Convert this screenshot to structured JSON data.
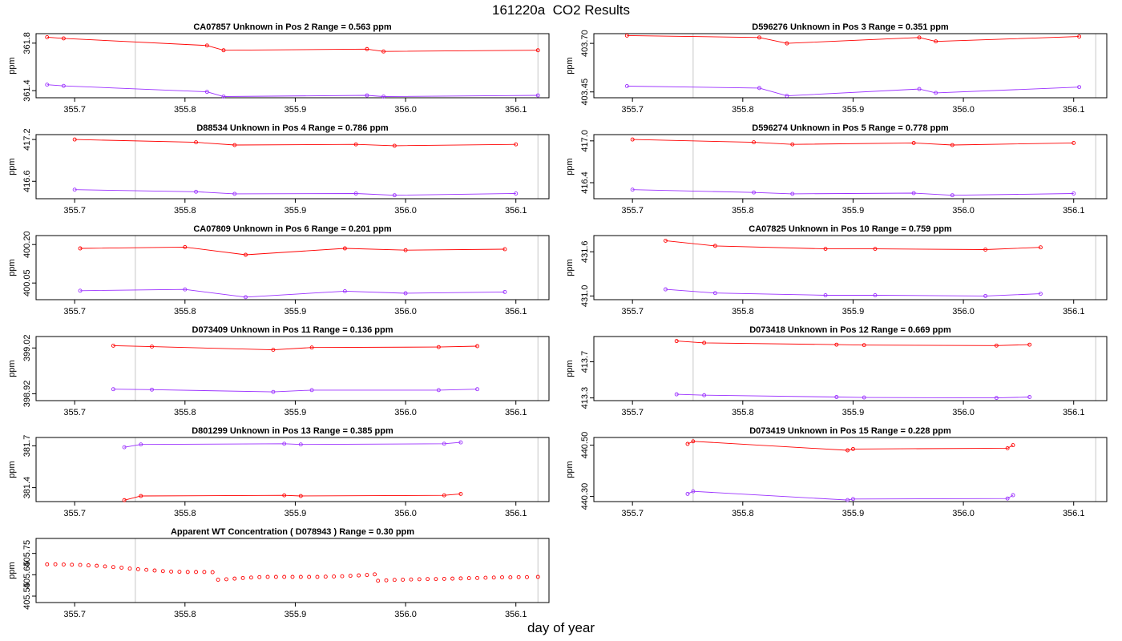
{
  "page_title": "161220a  CO2 Results",
  "x_axis_label": "day of year",
  "y_axis_label": "ppm",
  "colors": {
    "series_a": "#ff0000",
    "series_b": "#9b30ff",
    "frame": "#000000",
    "vline": "#c8c8c8"
  },
  "chart_data": [
    {
      "type": "line",
      "title": "CA07857    Unknown in Pos 2         Range =  0.563 ppm",
      "xlabel": "",
      "ylabel": "ppm",
      "xlim": [
        355.665,
        356.13
      ],
      "ylim": [
        361.34,
        361.88
      ],
      "xticks": [
        "355.7",
        "355.8",
        "355.9",
        "356.0",
        "356.1"
      ],
      "yticks": [
        "361.4",
        "361.8"
      ],
      "vlines": [
        355.755,
        356.12
      ],
      "series": [
        {
          "name": "red",
          "color": "#ff0000",
          "x": [
            355.675,
            355.69,
            355.82,
            355.835,
            355.965,
            355.98,
            356.12
          ],
          "y": [
            361.85,
            361.84,
            361.78,
            361.74,
            361.75,
            361.73,
            361.74
          ]
        },
        {
          "name": "purple",
          "color": "#9b30ff",
          "x": [
            355.675,
            355.69,
            355.82,
            355.835,
            355.965,
            355.98,
            356.12
          ],
          "y": [
            361.45,
            361.44,
            361.39,
            361.35,
            361.36,
            361.35,
            361.36
          ]
        }
      ]
    },
    {
      "type": "line",
      "title": "D596276    Unknown in Pos 3         Range =  0.351 ppm",
      "xlabel": "",
      "ylabel": "ppm",
      "xlim": [
        355.665,
        356.13
      ],
      "ylim": [
        403.42,
        403.75
      ],
      "xticks": [
        "355.7",
        "355.8",
        "355.9",
        "356.0",
        "356.1"
      ],
      "yticks": [
        "403.45",
        "403.70"
      ],
      "vlines": [
        355.755,
        356.12
      ],
      "series": [
        {
          "name": "red",
          "color": "#ff0000",
          "x": [
            355.695,
            355.815,
            355.84,
            355.96,
            355.975,
            356.105
          ],
          "y": [
            403.74,
            403.73,
            403.7,
            403.73,
            403.71,
            403.735
          ]
        },
        {
          "name": "purple",
          "color": "#9b30ff",
          "x": [
            355.695,
            355.815,
            355.84,
            355.96,
            355.975,
            356.105
          ],
          "y": [
            403.48,
            403.47,
            403.43,
            403.465,
            403.445,
            403.475
          ]
        }
      ]
    },
    {
      "type": "line",
      "title": "D88534    Unknown in Pos 4         Range =  0.786 ppm",
      "xlabel": "",
      "ylabel": "ppm",
      "xlim": [
        355.665,
        356.13
      ],
      "ylim": [
        416.35,
        417.27
      ],
      "xticks": [
        "355.7",
        "355.8",
        "355.9",
        "356.0",
        "356.1"
      ],
      "yticks": [
        "416.6",
        "417.2"
      ],
      "vlines": [
        355.755,
        356.12
      ],
      "series": [
        {
          "name": "red",
          "color": "#ff0000",
          "x": [
            355.7,
            355.81,
            355.845,
            355.955,
            355.99,
            356.1
          ],
          "y": [
            417.2,
            417.16,
            417.12,
            417.13,
            417.11,
            417.13
          ]
        },
        {
          "name": "purple",
          "color": "#9b30ff",
          "x": [
            355.7,
            355.81,
            355.845,
            355.955,
            355.99,
            356.1
          ],
          "y": [
            416.48,
            416.45,
            416.42,
            416.425,
            416.4,
            416.425
          ]
        }
      ]
    },
    {
      "type": "line",
      "title": "D596274    Unknown in Pos 5         Range =  0.778 ppm",
      "xlabel": "",
      "ylabel": "ppm",
      "xlim": [
        355.665,
        356.13
      ],
      "ylim": [
        416.17,
        417.09
      ],
      "xticks": [
        "355.7",
        "355.8",
        "355.9",
        "356.0",
        "356.1"
      ],
      "yticks": [
        "416.4",
        "417.0"
      ],
      "vlines": [
        355.755,
        356.12
      ],
      "series": [
        {
          "name": "red",
          "color": "#ff0000",
          "x": [
            355.7,
            355.81,
            355.845,
            355.955,
            355.99,
            356.1
          ],
          "y": [
            417.02,
            416.98,
            416.95,
            416.97,
            416.94,
            416.97
          ]
        },
        {
          "name": "purple",
          "color": "#9b30ff",
          "x": [
            355.7,
            355.81,
            355.845,
            355.955,
            355.99,
            356.1
          ],
          "y": [
            416.3,
            416.26,
            416.24,
            416.25,
            416.22,
            416.245
          ]
        }
      ]
    },
    {
      "type": "line",
      "title": "CA07809    Unknown in Pos 6         Range =  0.201 ppm",
      "xlabel": "",
      "ylabel": "ppm",
      "xlim": [
        355.665,
        356.13
      ],
      "ylim": [
        399.985,
        400.235
      ],
      "xticks": [
        "355.7",
        "355.8",
        "355.9",
        "356.0",
        "356.1"
      ],
      "yticks": [
        "400.05",
        "400.20"
      ],
      "vlines": [
        355.755,
        356.12
      ],
      "series": [
        {
          "name": "red",
          "color": "#ff0000",
          "x": [
            355.705,
            355.8,
            355.855,
            355.945,
            356.0,
            356.09
          ],
          "y": [
            400.185,
            400.19,
            400.16,
            400.185,
            400.178,
            400.182
          ]
        },
        {
          "name": "purple",
          "color": "#9b30ff",
          "x": [
            355.705,
            355.8,
            355.855,
            355.945,
            356.0,
            356.09
          ],
          "y": [
            400.02,
            400.025,
            399.995,
            400.018,
            400.01,
            400.015
          ]
        }
      ]
    },
    {
      "type": "line",
      "title": "CA07825    Unknown in Pos 10         Range =  0.759 ppm",
      "xlabel": "",
      "ylabel": "ppm",
      "xlim": [
        355.665,
        356.13
      ],
      "ylim": [
        430.95,
        431.82
      ],
      "xticks": [
        "355.7",
        "355.8",
        "355.9",
        "356.0",
        "356.1"
      ],
      "yticks": [
        "431.0",
        "431.6"
      ],
      "vlines": [
        355.755,
        356.12
      ],
      "series": [
        {
          "name": "red",
          "color": "#ff0000",
          "x": [
            355.73,
            355.775,
            355.875,
            355.92,
            356.02,
            356.07
          ],
          "y": [
            431.75,
            431.68,
            431.64,
            431.64,
            431.63,
            431.66
          ]
        },
        {
          "name": "purple",
          "color": "#9b30ff",
          "x": [
            355.73,
            355.775,
            355.875,
            355.92,
            356.02,
            356.07
          ],
          "y": [
            431.09,
            431.04,
            431.01,
            431.01,
            431.0,
            431.03
          ]
        }
      ]
    },
    {
      "type": "line",
      "title": "D073409    Unknown in Pos 11         Range =  0.136 ppm",
      "xlabel": "",
      "ylabel": "ppm",
      "xlim": [
        355.665,
        356.13
      ],
      "ylim": [
        398.905,
        399.045
      ],
      "xticks": [
        "355.7",
        "355.8",
        "355.9",
        "356.0",
        "356.1"
      ],
      "yticks": [
        "398.92",
        "399.02"
      ],
      "vlines": [
        355.755,
        356.12
      ],
      "series": [
        {
          "name": "red",
          "color": "#ff0000",
          "x": [
            355.735,
            355.77,
            355.88,
            355.915,
            356.03,
            356.065
          ],
          "y": [
            399.025,
            399.023,
            399.016,
            399.021,
            399.022,
            399.024
          ]
        },
        {
          "name": "purple",
          "color": "#9b30ff",
          "x": [
            355.735,
            355.77,
            355.88,
            355.915,
            356.03,
            356.065
          ],
          "y": [
            398.93,
            398.929,
            398.924,
            398.928,
            398.928,
            398.93
          ]
        }
      ]
    },
    {
      "type": "line",
      "title": "D073418    Unknown in Pos 12         Range =  0.669 ppm",
      "xlabel": "",
      "ylabel": "ppm",
      "xlim": [
        355.665,
        356.13
      ],
      "ylim": [
        413.27,
        413.98
      ],
      "xticks": [
        "355.7",
        "355.8",
        "355.9",
        "356.0",
        "356.1"
      ],
      "yticks": [
        "413.3",
        "413.7"
      ],
      "vlines": [
        355.755,
        356.12
      ],
      "series": [
        {
          "name": "red",
          "color": "#ff0000",
          "x": [
            355.74,
            355.765,
            355.885,
            355.91,
            356.03,
            356.06
          ],
          "y": [
            413.93,
            413.91,
            413.89,
            413.885,
            413.88,
            413.89
          ]
        },
        {
          "name": "purple",
          "color": "#9b30ff",
          "x": [
            355.74,
            355.765,
            355.885,
            355.91,
            356.03,
            356.06
          ],
          "y": [
            413.34,
            413.33,
            413.31,
            413.305,
            413.3,
            413.31
          ]
        }
      ]
    },
    {
      "type": "line",
      "title": "D801299    Unknown in Pos 13         Range =  0.385 ppm",
      "xlabel": "",
      "ylabel": "ppm",
      "xlim": [
        355.665,
        356.13
      ],
      "ylim": [
        381.3,
        381.76
      ],
      "xticks": [
        "355.7",
        "355.8",
        "355.9",
        "356.0",
        "356.1"
      ],
      "yticks": [
        "381.4",
        "381.7"
      ],
      "vlines": [
        355.755,
        356.12
      ],
      "series": [
        {
          "name": "red",
          "color": "#ff0000",
          "x": [
            355.745,
            355.76,
            355.89,
            355.905,
            356.035,
            356.05
          ],
          "y": [
            381.31,
            381.34,
            381.345,
            381.34,
            381.345,
            381.355
          ]
        },
        {
          "name": "purple",
          "color": "#9b30ff",
          "x": [
            355.745,
            355.76,
            355.89,
            355.905,
            356.035,
            356.05
          ],
          "y": [
            381.69,
            381.71,
            381.715,
            381.71,
            381.715,
            381.725
          ]
        }
      ]
    },
    {
      "type": "line",
      "title": "D073419    Unknown in Pos 15         Range =  0.228 ppm",
      "xlabel": "",
      "ylabel": "ppm",
      "xlim": [
        355.665,
        356.13
      ],
      "ylim": [
        440.28,
        440.53
      ],
      "xticks": [
        "355.7",
        "355.8",
        "355.9",
        "356.0",
        "356.1"
      ],
      "yticks": [
        "440.30",
        "440.50"
      ],
      "vlines": [
        355.755,
        356.12
      ],
      "series": [
        {
          "name": "red",
          "color": "#ff0000",
          "x": [
            355.75,
            355.755,
            355.895,
            355.9,
            356.04,
            356.045
          ],
          "y": [
            440.505,
            440.515,
            440.48,
            440.485,
            440.488,
            440.5
          ]
        },
        {
          "name": "purple",
          "color": "#9b30ff",
          "x": [
            355.75,
            355.755,
            355.895,
            355.9,
            356.04,
            356.045
          ],
          "y": [
            440.31,
            440.32,
            440.286,
            440.29,
            440.292,
            440.305
          ]
        }
      ]
    },
    {
      "type": "scatter",
      "title": "Apparent WT Concentration ( D078943 )         Range = 0.30 ppm",
      "xlabel": "",
      "ylabel": "ppm",
      "xlim": [
        355.665,
        356.13
      ],
      "ylim": [
        405.52,
        405.82
      ],
      "xticks": [
        "355.7",
        "355.8",
        "355.9",
        "356.0",
        "356.1"
      ],
      "yticks": [
        "405.55",
        "405.65",
        "405.75"
      ],
      "vlines": [
        355.755,
        356.12
      ],
      "series": [
        {
          "name": "WT",
          "color": "#ff0000",
          "x": [
            355.675,
            355.6825,
            355.69,
            355.6975,
            355.705,
            355.7125,
            355.72,
            355.7275,
            355.735,
            355.7425,
            355.75,
            355.7575,
            355.765,
            355.7725,
            355.78,
            355.7875,
            355.795,
            355.8025,
            355.81,
            355.8175,
            355.825,
            355.83,
            355.8375,
            355.845,
            355.8525,
            355.86,
            355.8675,
            355.875,
            355.8825,
            355.89,
            355.8975,
            355.905,
            355.9125,
            355.92,
            355.9275,
            355.935,
            355.9425,
            355.95,
            355.9575,
            355.965,
            355.972,
            355.975,
            355.9825,
            355.99,
            355.9975,
            356.005,
            356.0125,
            356.02,
            356.0275,
            356.035,
            356.0425,
            356.05,
            356.0575,
            356.065,
            356.0725,
            356.08,
            356.0875,
            356.095,
            356.1025,
            356.11,
            356.12
          ],
          "y": [
            405.699,
            405.699,
            405.698,
            405.697,
            405.696,
            405.694,
            405.692,
            405.689,
            405.686,
            405.683,
            405.679,
            405.676,
            405.673,
            405.67,
            405.667,
            405.665,
            405.664,
            405.663,
            405.663,
            405.663,
            405.662,
            405.627,
            405.629,
            405.632,
            405.635,
            405.637,
            405.639,
            405.64,
            405.64,
            405.64,
            405.64,
            405.64,
            405.64,
            405.64,
            405.641,
            405.642,
            405.643,
            405.645,
            405.647,
            405.649,
            405.652,
            405.622,
            405.624,
            405.626,
            405.627,
            405.628,
            405.629,
            405.63,
            405.63,
            405.631,
            405.632,
            405.633,
            405.634,
            405.635,
            405.636,
            405.637,
            405.638,
            405.638,
            405.639,
            405.639,
            405.64
          ]
        }
      ]
    }
  ]
}
